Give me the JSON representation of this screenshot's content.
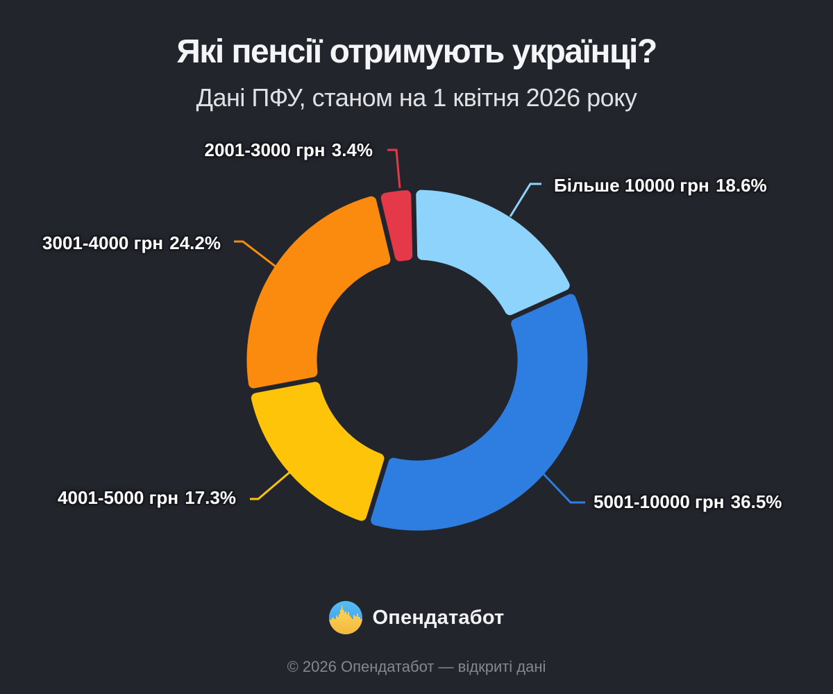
{
  "title": "Які пенсії отримують українці?",
  "subtitle": "Дані ПФУ, станом на 1 квітня 2026 року",
  "chart_data": {
    "type": "pie",
    "subtype": "donut",
    "title": "Які пенсії отримують українці?",
    "subtitle": "Дані ПФУ, станом на 1 квітня 2026 року",
    "unit": "%",
    "legend_position": "none",
    "labels_style": "outside-callout",
    "total": 100,
    "slices": [
      {
        "label": "2001-3000 грн",
        "pct_label": "3.4%",
        "value": 3.4,
        "color": "#e53848"
      },
      {
        "label": "Більше 10000 грн",
        "pct_label": "18.6%",
        "value": 18.6,
        "color": "#8ed3fb"
      },
      {
        "label": "5001-10000 грн",
        "pct_label": "36.5%",
        "value": 36.5,
        "color": "#2e7de0"
      },
      {
        "label": "4001-5000 грн",
        "pct_label": "17.3%",
        "value": 17.3,
        "color": "#fdc40a"
      },
      {
        "label": "3001-4000 грн",
        "pct_label": "24.2%",
        "value": 24.2,
        "color": "#fb8b0e"
      }
    ]
  },
  "logo": {
    "text": "Опендатабот",
    "icon": "opendatabot-circle-skyline",
    "icon_colors": {
      "sky": "#44a7ee",
      "ground": "#ffd04a"
    }
  },
  "footer": {
    "text": "© 2026 Опендатабот — відкриті дані"
  }
}
